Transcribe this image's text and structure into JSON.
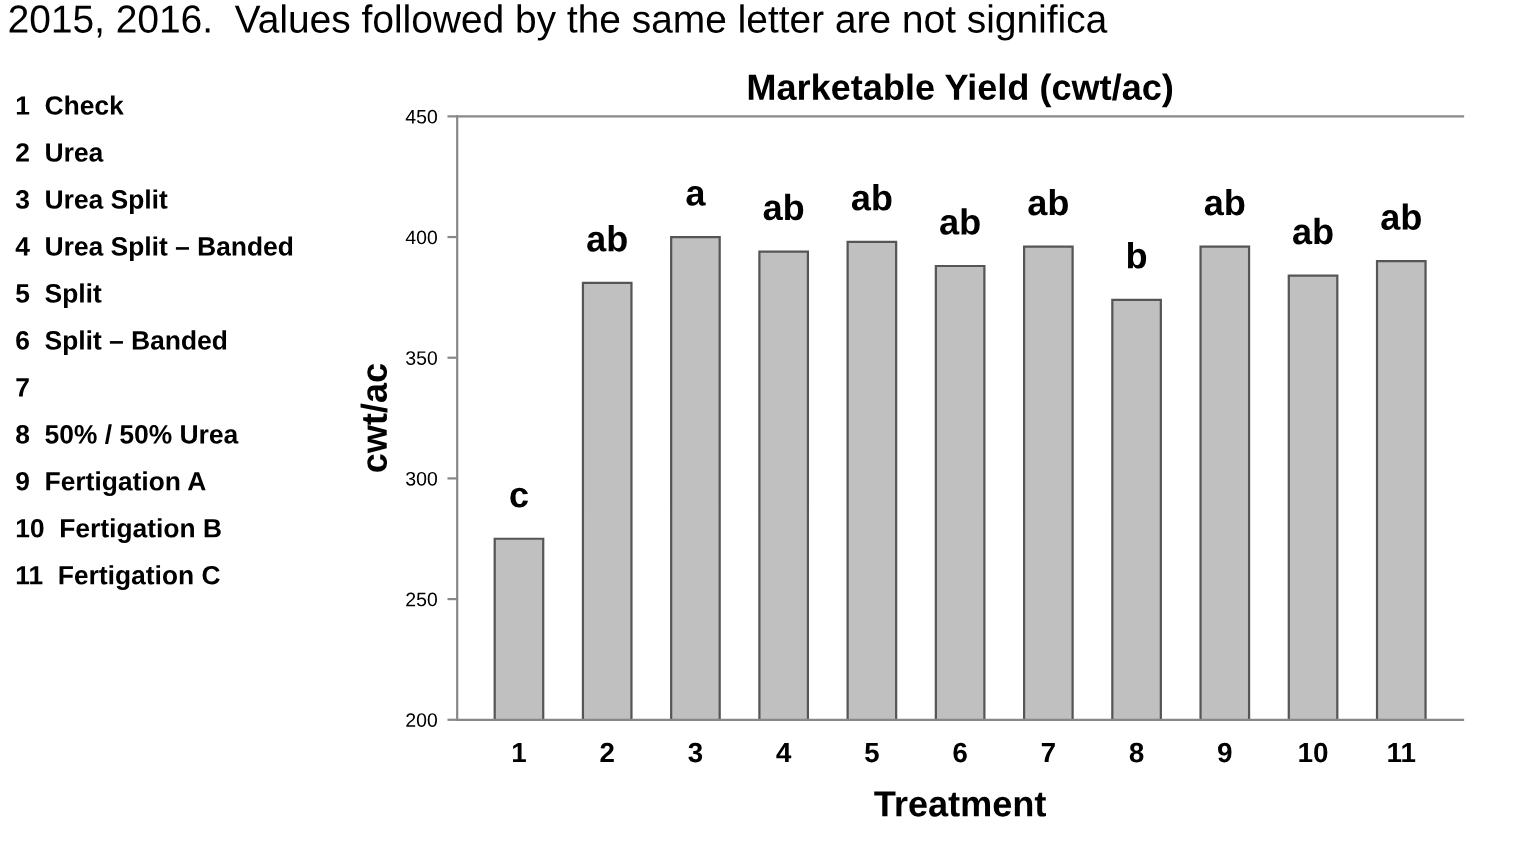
{
  "chart_data": {
    "type": "bar",
    "title": "Marketable Yield (cwt/ac)",
    "xlabel": "Treatment",
    "ylabel": "cwt/ac",
    "categories": [
      "1",
      "2",
      "3",
      "4",
      "5",
      "6",
      "7",
      "8",
      "9",
      "10",
      "11"
    ],
    "values": [
      275,
      381,
      400,
      394,
      398,
      388,
      396,
      374,
      396,
      384,
      390
    ],
    "color": "#c0c0c0",
    "ylim": [
      200,
      450
    ],
    "yticks": [
      200,
      250,
      300,
      350,
      400,
      450
    ],
    "grid": false,
    "legend": false,
    "annotations": [
      "2015, 2016.  Values followed by the same letter are not significa",
      "1  Check",
      "2  Urea",
      "3  Urea Split",
      "4  Urea Split – Banded",
      "5  Split",
      "6  Split – Banded",
      "7",
      "8  50% / 50% Urea",
      "9  Fertigation A",
      "10  Fertigation B",
      "11  Fertigation C",
      "c",
      "ab",
      "a",
      "ab",
      "ab",
      "ab",
      "ab",
      "b",
      "ab",
      "ab",
      "ab"
    ]
  }
}
